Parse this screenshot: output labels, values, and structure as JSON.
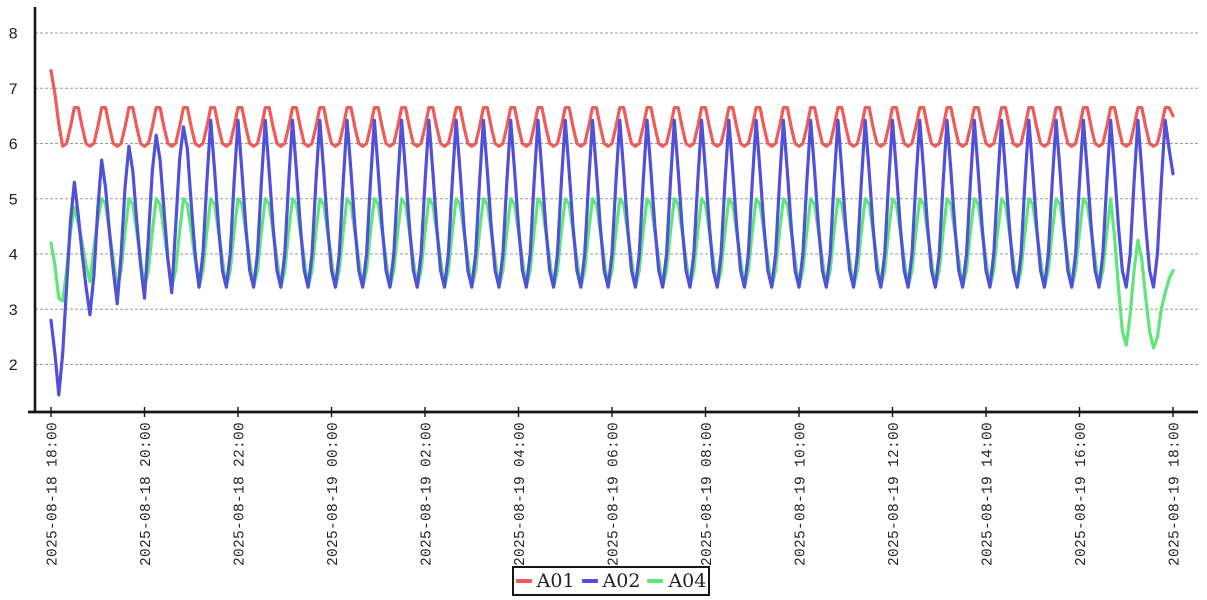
{
  "chart_data": {
    "type": "line",
    "title": "",
    "xlabel": "",
    "ylabel": "",
    "x_axis": {
      "sample_interval_minutes": 5,
      "samples_per_tick": 24,
      "tick_labels": [
        "2025-08-18 18:00",
        "2025-08-18 20:00",
        "2025-08-18 22:00",
        "2025-08-19 00:00",
        "2025-08-19 02:00",
        "2025-08-19 04:00",
        "2025-08-19 06:00",
        "2025-08-19 08:00",
        "2025-08-19 10:00",
        "2025-08-19 12:00",
        "2025-08-19 14:00",
        "2025-08-19 16:00",
        "2025-08-19 18:00"
      ]
    },
    "y_axis": {
      "ticks": [
        2,
        3,
        4,
        5,
        6,
        7,
        8
      ],
      "min": 1.14,
      "max": 8.47
    },
    "grid": {
      "horizontal": true,
      "vertical": false,
      "line_style": "dashed",
      "color": "#9a9a9a"
    },
    "legend_position": "bottom-center",
    "values_encoding": "per series: values = head, then cycle repeated 'repeats' times, then tail; one value per 5-minute sample (289 samples total)",
    "series": [
      {
        "name": "A01",
        "color": "#ef5a5a",
        "pattern": {
          "head": [
            7.32,
            6.9,
            6.35
          ],
          "cycle": [
            5.95,
            6.0,
            6.3,
            6.65,
            6.65,
            6.3,
            6.0
          ],
          "repeats": 40,
          "tail": [
            5.95,
            6.0,
            6.3,
            6.65,
            6.65,
            6.5
          ]
        }
      },
      {
        "name": "A02",
        "color": "#5050d8",
        "pattern": {
          "head": [
            2.8,
            2.2,
            1.45,
            2.2,
            3.4,
            4.6,
            5.3,
            4.7,
            4.0,
            3.4,
            2.9,
            3.6,
            4.8,
            5.7,
            5.2,
            4.4,
            3.7,
            3.1,
            4.0,
            5.2,
            5.95,
            5.5,
            4.6,
            3.8,
            3.2,
            4.3,
            5.5,
            6.15,
            5.7,
            4.8,
            3.9,
            3.3,
            4.5,
            5.7,
            6.3,
            5.9,
            4.9,
            4.0,
            3.4,
            4.0,
            5.3
          ],
          "cycle": [
            6.42,
            5.5,
            4.5,
            3.7,
            3.4,
            4.0,
            5.3
          ],
          "repeats": 35,
          "tail": [
            6.42,
            5.9,
            5.45
          ]
        }
      },
      {
        "name": "A04",
        "color": "#5fe67b",
        "pattern": {
          "head": [
            4.2,
            3.8,
            3.2,
            3.15,
            3.7,
            4.4,
            4.85,
            4.55,
            4.2,
            3.8,
            3.5,
            4.1,
            4.6
          ],
          "cycle": [
            5.0,
            4.9,
            4.4,
            3.9,
            3.4,
            3.7,
            4.4
          ],
          "repeats": 37,
          "tail": [
            5.0,
            4.3,
            3.4,
            2.6,
            2.35,
            2.9,
            3.7,
            4.25,
            3.9,
            3.2,
            2.6,
            2.3,
            2.5,
            3.0,
            3.3,
            3.55,
            3.7
          ]
        }
      }
    ]
  }
}
